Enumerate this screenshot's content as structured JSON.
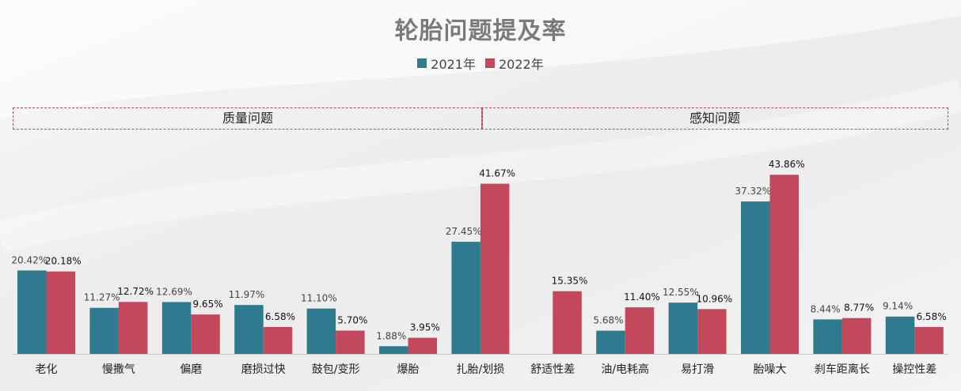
{
  "title": "轮胎问题提及率",
  "legend": [
    {
      "name": "2021年",
      "color": "#2e7a8e"
    },
    {
      "name": "2022年",
      "color": "#c3485b"
    }
  ],
  "groups": [
    {
      "label": "质量问题",
      "from": 0,
      "to": 6
    },
    {
      "label": "感知问题",
      "from": 7,
      "to": 12
    }
  ],
  "chart_data": {
    "type": "bar",
    "title": "轮胎问题提及率",
    "categories": [
      "老化",
      "慢撒气",
      "偏磨",
      "磨损过快",
      "鼓包/变形",
      "爆胎",
      "扎胎/划损",
      "舒适性差",
      "油/电耗高",
      "易打滑",
      "胎噪大",
      "刹车距离长",
      "操控性差"
    ],
    "series": [
      {
        "name": "2021年",
        "color": "#2e7a8e",
        "values": [
          20.42,
          11.27,
          12.69,
          11.97,
          11.1,
          1.88,
          27.45,
          null,
          5.68,
          12.55,
          37.32,
          8.44,
          9.14
        ]
      },
      {
        "name": "2022年",
        "color": "#c3485b",
        "values": [
          20.18,
          12.72,
          9.65,
          6.58,
          5.7,
          3.95,
          41.67,
          15.35,
          11.4,
          10.96,
          43.86,
          8.77,
          6.58
        ]
      }
    ],
    "value_suffix": "%",
    "grid": false,
    "legend_position": "top"
  }
}
